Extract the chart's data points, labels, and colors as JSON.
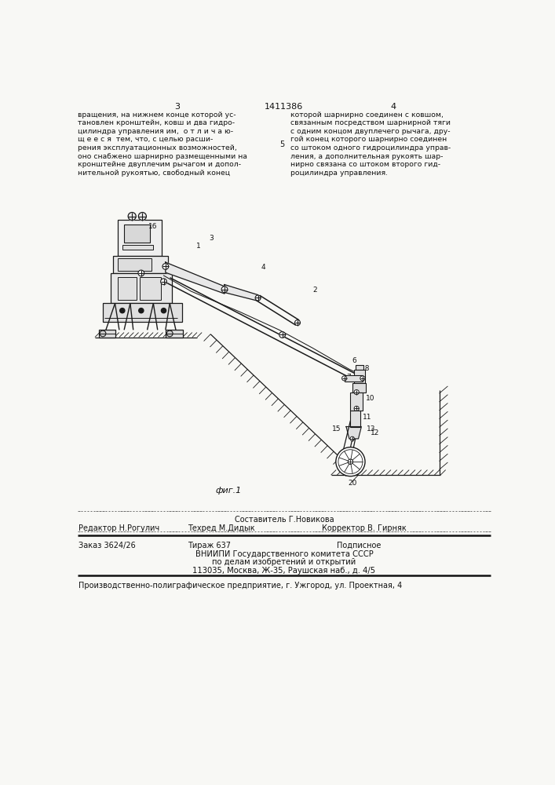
{
  "page_width": 7.07,
  "page_height": 10.0,
  "bg_color": "#f8f8f5",
  "header_page_left": "3",
  "header_title": "1411386",
  "header_page_right": "4",
  "top_text_left": "вращения, на нижнем конце которой ус-\nтановлен кронштейн, ковш и два гидро-\nцилиндра управления им,  о т л и ч а ю-\nщ е е с я  тем, что, с целью расши-\nрения эксплуатационных возможностей,\nоно снабжено шарнирно размещенными на\nкронштейне двуплечим рычагом и допол-\nнительной рукоятью, свободный конец",
  "top_text_right": "которой шарнирно соединен с ковшом,\nсвязанным посредством шарнирной тяги\nс одним концом двуплечего рычага, дру-\nгой конец которого шарнирно соединен\nсо штоком одного гидроцилиндра управ-\nления, а дополнительная рукоять шар-\nнирно связана со штоком второго гид-\nроцилиндра управления.",
  "fig_caption": "фиг.1",
  "bottom_composer": "Составитель Г.Новикова",
  "bottom_editor": "Редактор Н.Рогулич",
  "bottom_techred": "Техред М.Дидык",
  "bottom_corrector": "Корректор В. Гирняк",
  "bottom_order": "Заказ 3624/26",
  "bottom_tirazh": "Тираж 637",
  "bottom_podpisnoe": "Подписное",
  "bottom_vniipи": "ВНИИПИ Государственного комитета СССР",
  "bottom_po": "по делам изобретений и открытий",
  "bottom_address": "113035, Москва, Ж-35, Раушская наб., д. 4/5",
  "bottom_factory": "Производственно-полиграфическое предприятие, г. Ужгород, ул. Проектная, 4",
  "lc": "#1a1a1a",
  "tc": "#111111"
}
